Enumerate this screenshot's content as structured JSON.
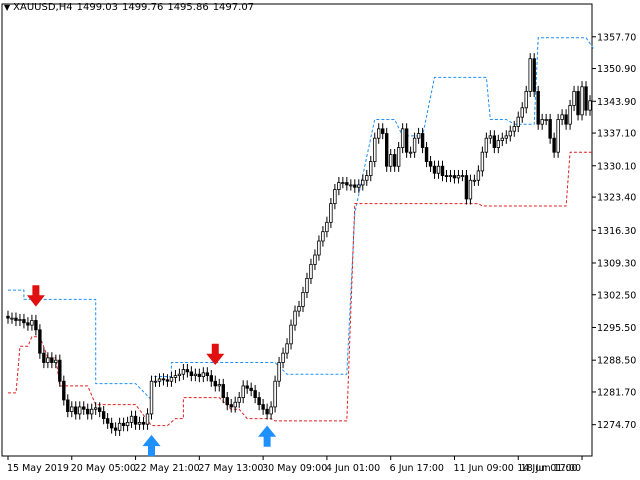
{
  "header": {
    "collapse_glyph": "▼",
    "symbol": "XAUUSD,H4",
    "open": "1499.03",
    "high": "1499.76",
    "low": "1495.86",
    "close": "1497.07"
  },
  "colors": {
    "background": "#ffffff",
    "candle": "#000000",
    "upper_channel": "#1e90ff",
    "lower_channel": "#e02020",
    "sell_arrow": "#e01010",
    "buy_arrow": "#1e90ff",
    "axis": "#000000"
  },
  "chart_data": {
    "type": "candlestick",
    "title": "",
    "y_ticks": [
      "1357.70",
      "1350.90",
      "1343.90",
      "1337.10",
      "1330.10",
      "1323.40",
      "1316.30",
      "1309.30",
      "1302.50",
      "1295.50",
      "1288.50",
      "1281.70",
      "1274.70"
    ],
    "ylim": [
      1268,
      1363
    ],
    "x_ticks": [
      "15 May 2019",
      "20 May 05:00",
      "22 May 21:00",
      "27 May 13:00",
      "30 May 09:00",
      "4 Jun 01:00",
      "6 Jun 17:00",
      "11 Jun 09:00",
      "14 Jun 01:00",
      "18 Jun 17:00"
    ],
    "n_bars": 147,
    "closes": [
      1297.5,
      1297.5,
      1297.0,
      1297.2,
      1296.5,
      1296.0,
      1297.0,
      1295.0,
      1290.0,
      1288.0,
      1289.0,
      1288.0,
      1288.5,
      1284.0,
      1280.0,
      1277.5,
      1278.5,
      1277.0,
      1278.5,
      1278.0,
      1277.0,
      1278.0,
      1278.3,
      1277.5,
      1276.0,
      1275.0,
      1274.0,
      1273.5,
      1275.0,
      1274.5,
      1275.2,
      1276.5,
      1274.8,
      1275.2,
      1274.8,
      1277.0,
      1284.0,
      1284.0,
      1284.5,
      1284.3,
      1284.0,
      1284.8,
      1285.2,
      1285.5,
      1286.5,
      1286.0,
      1285.2,
      1285.5,
      1285.0,
      1285.8,
      1285.2,
      1284.0,
      1283.0,
      1283.3,
      1280.5,
      1279.0,
      1278.5,
      1279.5,
      1280.5,
      1283.0,
      1282.5,
      1282.0,
      1280.5,
      1279.0,
      1278.0,
      1277.0,
      1278.5,
      1284.0,
      1288.0,
      1290.0,
      1292.0,
      1296.0,
      1299.0,
      1300.0,
      1303.0,
      1306.0,
      1309.0,
      1311.0,
      1314.0,
      1316.0,
      1318.0,
      1322.0,
      1325.0,
      1326.5,
      1326.5,
      1326.0,
      1326.0,
      1325.5,
      1326.0,
      1327.0,
      1328.0,
      1331.0,
      1336.0,
      1338.0,
      1337.0,
      1330.0,
      1332.5,
      1330.0,
      1334.0,
      1338.0,
      1333.0,
      1333.0,
      1336.0,
      1337.0,
      1334.0,
      1331.0,
      1330.0,
      1328.5,
      1330.0,
      1328.0,
      1327.8,
      1328.0,
      1327.5,
      1328.0,
      1328.0,
      1323.0,
      1327.0,
      1327.0,
      1329.0,
      1333.0,
      1336.0,
      1336.5,
      1334.0,
      1335.5,
      1336.0,
      1336.5,
      1337.5,
      1338.5,
      1340.5,
      1342.5,
      1346.0,
      1353.0,
      1346.0,
      1339.0,
      1340.0,
      1340.0,
      1336.0,
      1333.0,
      1340.0,
      1341.0,
      1339.0,
      1343.0,
      1346.0,
      1341.0,
      1347.0,
      1342.0,
      1344.0
    ],
    "upper_channel": [
      [
        0,
        1303.5
      ],
      [
        4,
        1303.5
      ],
      [
        4,
        1301.5
      ],
      [
        22,
        1301.5
      ],
      [
        22,
        1283.5
      ],
      [
        32,
        1283.5
      ],
      [
        36,
        1280.0
      ],
      [
        36,
        1285.0
      ],
      [
        41,
        1285.0
      ],
      [
        41,
        1288.0
      ],
      [
        67,
        1288.0
      ],
      [
        70,
        1285.5
      ],
      [
        85,
        1285.5
      ],
      [
        87,
        1320.0
      ],
      [
        92,
        1340.0
      ],
      [
        97,
        1340.0
      ],
      [
        99,
        1336.5
      ],
      [
        104,
        1336.5
      ],
      [
        107,
        1349.0
      ],
      [
        120,
        1349.0
      ],
      [
        121,
        1340.0
      ],
      [
        125,
        1340.0
      ],
      [
        127,
        1339.0
      ],
      [
        132,
        1339.0
      ],
      [
        133,
        1357.5
      ],
      [
        145,
        1357.5
      ],
      [
        147,
        1355.0
      ]
    ],
    "lower_channel": [
      [
        0,
        1281.5
      ],
      [
        2,
        1281.5
      ],
      [
        3,
        1291.5
      ],
      [
        5,
        1291.5
      ],
      [
        6,
        1293.5
      ],
      [
        8,
        1293.5
      ],
      [
        10,
        1289.0
      ],
      [
        12,
        1289.0
      ],
      [
        13,
        1283.0
      ],
      [
        20,
        1283.0
      ],
      [
        22,
        1279.0
      ],
      [
        32,
        1279.0
      ],
      [
        36,
        1274.5
      ],
      [
        40,
        1274.5
      ],
      [
        42,
        1276.0
      ],
      [
        44,
        1276.0
      ],
      [
        44,
        1280.5
      ],
      [
        53,
        1280.5
      ],
      [
        56,
        1278.0
      ],
      [
        58,
        1278.0
      ],
      [
        60,
        1276.0
      ],
      [
        66,
        1276.0
      ],
      [
        67,
        1275.5
      ],
      [
        85,
        1275.5
      ],
      [
        87,
        1322.0
      ],
      [
        118,
        1322.0
      ],
      [
        119,
        1321.5
      ],
      [
        140,
        1321.5
      ],
      [
        141,
        1333.0
      ],
      [
        147,
        1333.0
      ]
    ],
    "sell_arrows": [
      [
        7,
        1301.0
      ],
      [
        52,
        1288.5
      ]
    ],
    "buy_arrows": [
      [
        36,
        1271.5
      ],
      [
        65,
        1273.5
      ]
    ]
  }
}
